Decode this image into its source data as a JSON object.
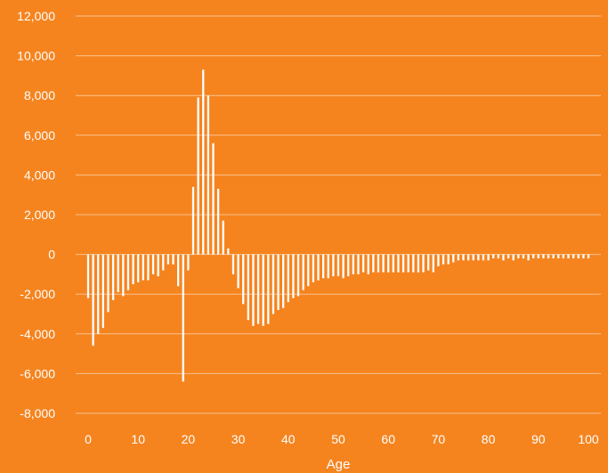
{
  "chart_data": {
    "type": "bar",
    "title": "",
    "xlabel": "Age",
    "ylabel": "",
    "xlim": [
      0,
      100
    ],
    "ylim": [
      -8000,
      12000
    ],
    "y_ticks": [
      -8000,
      -6000,
      -4000,
      -2000,
      0,
      2000,
      4000,
      6000,
      8000,
      10000,
      12000
    ],
    "y_tick_labels": [
      "-8,000",
      "-6,000",
      "-4,000",
      "-2,000",
      "0",
      "2,000",
      "4,000",
      "6,000",
      "8,000",
      "10,000",
      "12,000"
    ],
    "x_ticks": [
      0,
      10,
      20,
      30,
      40,
      50,
      60,
      70,
      80,
      90,
      100
    ],
    "x_tick_labels": [
      "0",
      "10",
      "20",
      "30",
      "40",
      "50",
      "60",
      "70",
      "80",
      "90",
      "100"
    ],
    "grid": "horizontal",
    "colors": {
      "background": "#F5841F",
      "bars": "#FFFFFF",
      "grid": "#FBC18E",
      "text": "#FFFFFF"
    },
    "x": [
      0,
      1,
      2,
      3,
      4,
      5,
      6,
      7,
      8,
      9,
      10,
      11,
      12,
      13,
      14,
      15,
      16,
      17,
      18,
      19,
      20,
      21,
      22,
      23,
      24,
      25,
      26,
      27,
      28,
      29,
      30,
      31,
      32,
      33,
      34,
      35,
      36,
      37,
      38,
      39,
      40,
      41,
      42,
      43,
      44,
      45,
      46,
      47,
      48,
      49,
      50,
      51,
      52,
      53,
      54,
      55,
      56,
      57,
      58,
      59,
      60,
      61,
      62,
      63,
      64,
      65,
      66,
      67,
      68,
      69,
      70,
      71,
      72,
      73,
      74,
      75,
      76,
      77,
      78,
      79,
      80,
      81,
      82,
      83,
      84,
      85,
      86,
      87,
      88,
      89,
      90,
      91,
      92,
      93,
      94,
      95,
      96,
      97,
      98,
      99,
      100
    ],
    "values": [
      -2200,
      -4600,
      -4000,
      -3700,
      -2900,
      -2300,
      -1900,
      -2100,
      -1800,
      -1500,
      -1400,
      -1300,
      -1300,
      -1000,
      -1100,
      -800,
      -500,
      -500,
      -1600,
      -6400,
      -800,
      3400,
      7900,
      9300,
      8000,
      5600,
      3300,
      1700,
      300,
      -1000,
      -1700,
      -2500,
      -3300,
      -3600,
      -3500,
      -3600,
      -3500,
      -3000,
      -2800,
      -2700,
      -2400,
      -2200,
      -2100,
      -1800,
      -1600,
      -1400,
      -1300,
      -1200,
      -1200,
      -1100,
      -1100,
      -1200,
      -1100,
      -1000,
      -1000,
      -900,
      -1000,
      -900,
      -900,
      -900,
      -900,
      -900,
      -900,
      -900,
      -900,
      -900,
      -900,
      -900,
      -800,
      -900,
      -600,
      -500,
      -500,
      -400,
      -300,
      -300,
      -300,
      -300,
      -300,
      -300,
      -300,
      -200,
      -200,
      -300,
      -200,
      -300,
      -200,
      -200,
      -300,
      -200,
      -200,
      -200,
      -200,
      -200,
      -200,
      -200,
      -200,
      -200,
      -200,
      -200,
      -200
    ]
  }
}
